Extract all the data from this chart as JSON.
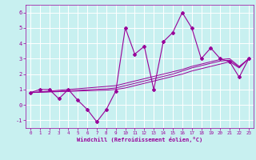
{
  "xlabel": "Windchill (Refroidissement éolien,°C)",
  "bg_color": "#c8f0f0",
  "line_color": "#990099",
  "grid_color": "#ffffff",
  "xlim": [
    -0.5,
    23.5
  ],
  "ylim": [
    -1.5,
    6.5
  ],
  "xticks": [
    0,
    1,
    2,
    3,
    4,
    5,
    6,
    7,
    8,
    9,
    10,
    11,
    12,
    13,
    14,
    15,
    16,
    17,
    18,
    19,
    20,
    21,
    22,
    23
  ],
  "yticks": [
    -1,
    0,
    1,
    2,
    3,
    4,
    5,
    6
  ],
  "series_main": [
    0.8,
    1.0,
    1.0,
    0.4,
    1.0,
    0.3,
    -0.3,
    -1.1,
    -0.3,
    0.9,
    5.0,
    3.3,
    3.8,
    1.0,
    4.1,
    4.7,
    6.0,
    5.0,
    3.0,
    3.7,
    3.0,
    2.8,
    1.8,
    3.0
  ],
  "series_trend1": [
    0.8,
    0.85,
    0.9,
    0.95,
    1.0,
    1.05,
    1.1,
    1.15,
    1.2,
    1.25,
    1.4,
    1.55,
    1.7,
    1.85,
    2.0,
    2.15,
    2.3,
    2.5,
    2.65,
    2.8,
    2.95,
    3.0,
    2.5,
    3.0
  ],
  "series_trend2": [
    0.8,
    0.82,
    0.84,
    0.86,
    0.88,
    0.9,
    0.92,
    0.94,
    0.96,
    1.0,
    1.1,
    1.25,
    1.4,
    1.55,
    1.7,
    1.85,
    2.0,
    2.2,
    2.35,
    2.5,
    2.65,
    2.8,
    2.4,
    3.0
  ],
  "series_trend3": [
    0.8,
    0.83,
    0.86,
    0.89,
    0.92,
    0.95,
    0.98,
    1.01,
    1.04,
    1.1,
    1.25,
    1.4,
    1.55,
    1.7,
    1.85,
    2.0,
    2.2,
    2.4,
    2.55,
    2.7,
    2.85,
    2.9,
    2.45,
    3.0
  ]
}
